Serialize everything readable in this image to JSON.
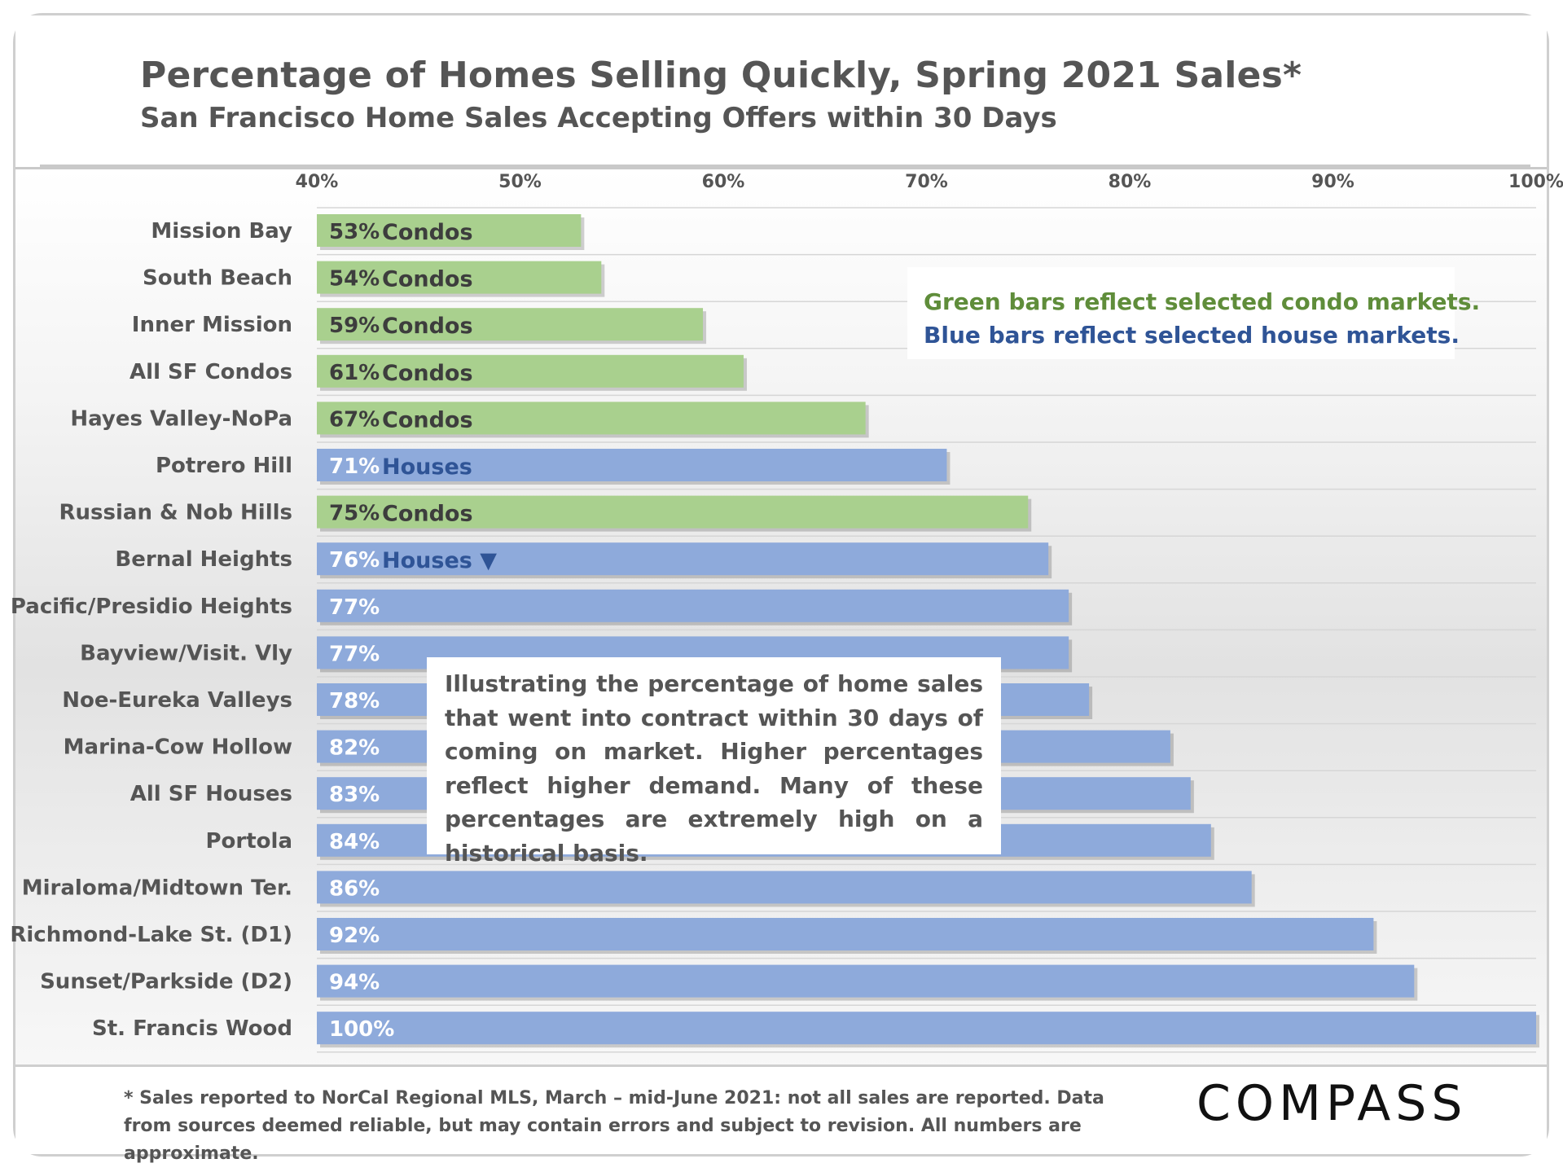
{
  "title": "Percentage of Homes Selling Quickly, Spring 2021 Sales*",
  "subtitle": "San Francisco Home Sales Accepting Offers within 30 Days",
  "legend": {
    "condo_text": "Green bars reflect selected condo markets.",
    "house_text": "Blue bars reflect selected house markets.",
    "condo_color": "#a9d08e",
    "house_color": "#8eaadb",
    "condo_text_color": "#5f8d3a",
    "house_text_color": "#2f5496"
  },
  "annotation": "Illustrating the percentage of home sales that went into contract within 30 days of coming on market. Higher percentages reflect higher demand. Many of these percentages are extremely high on a historical basis.",
  "footnote": "* Sales reported to NorCal Regional MLS, March – mid-June 2021: not all sales are reported. Data from sources deemed reliable, but may contain errors and subject to revision. All numbers are approximate.",
  "logo": "COMPASS",
  "chart_data": {
    "type": "bar",
    "orientation": "horizontal",
    "title": "Percentage of Homes Selling Quickly, Spring 2021 Sales*",
    "subtitle": "San Francisco Home Sales Accepting Offers within 30 Days",
    "xlim": [
      40,
      100
    ],
    "x_ticks": [
      40,
      50,
      60,
      70,
      80,
      90,
      100
    ],
    "x_tick_labels": [
      "40%",
      "50%",
      "60%",
      "70%",
      "80%",
      "90%",
      "100%"
    ],
    "grid": "horizontal",
    "categories": [
      "Mission Bay",
      "South Beach",
      "Inner Mission",
      "All SF Condos",
      "Hayes Valley-NoPa",
      "Potrero Hill",
      "Russian & Nob Hills",
      "Bernal Heights",
      "Pacific/Presidio Heights",
      "Bayview/Visit. Vly",
      "Noe-Eureka Valleys",
      "Marina-Cow Hollow",
      "All SF Houses",
      "Portola",
      "Miraloma/Midtown Ter.",
      "Richmond-Lake St. (D1)",
      "Sunset/Parkside (D2)",
      "St. Francis Wood"
    ],
    "values": [
      53,
      54,
      59,
      61,
      67,
      71,
      75,
      76,
      77,
      77,
      78,
      82,
      83,
      84,
      86,
      92,
      94,
      100
    ],
    "value_labels": [
      "53%",
      "54%",
      "59%",
      "61%",
      "67%",
      "71%",
      "75%",
      "76%",
      "77%",
      "77%",
      "78%",
      "82%",
      "83%",
      "84%",
      "86%",
      "92%",
      "94%",
      "100%"
    ],
    "types": [
      "condo",
      "condo",
      "condo",
      "condo",
      "condo",
      "house",
      "condo",
      "house",
      "house",
      "house",
      "house",
      "house",
      "house",
      "house",
      "house",
      "house",
      "house",
      "house"
    ],
    "bar_tags": [
      "Condos",
      "Condos",
      "Condos",
      "Condos",
      "Condos",
      "Houses",
      "Condos",
      "Houses ▼",
      "",
      "",
      "",
      "",
      "",
      "",
      "",
      "",
      "",
      ""
    ]
  }
}
